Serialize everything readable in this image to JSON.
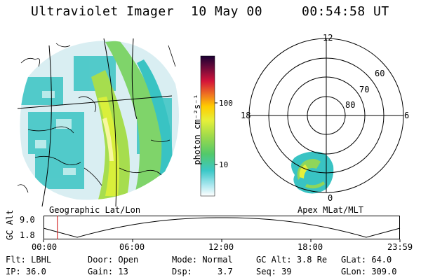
{
  "header": {
    "instrument": "Ultraviolet Imager",
    "date": "10 May 00",
    "time": "00:54:58 UT"
  },
  "left_panel": {
    "caption": "Geographic Lat/Lon"
  },
  "colorbar": {
    "label": "photon cm⁻²s⁻¹",
    "ticks": [
      "100",
      "10"
    ]
  },
  "right_panel": {
    "caption": "Apex MLat/MLT",
    "mlt_labels": {
      "top": "12",
      "left": "18",
      "right": "6",
      "bottom": "0"
    },
    "lat_labels": [
      "60",
      "70",
      "80"
    ]
  },
  "altitude_plot": {
    "ylabel": "GC Alt",
    "ymax": "9.0",
    "ymin": "1.8",
    "xticks": [
      "00:00",
      "06:00",
      "12:00",
      "18:00",
      "23:59"
    ],
    "current_time_fraction": 0.039
  },
  "info": {
    "row1": [
      {
        "key": "Flt:",
        "val": "LBHL"
      },
      {
        "key": "Door:",
        "val": "Open"
      },
      {
        "key": "Mode:",
        "val": "Normal"
      },
      {
        "key": "GC Alt:",
        "val": "3.8 Re"
      },
      {
        "key": "GLat:",
        "val": "64.0"
      }
    ],
    "row2": [
      {
        "key": "IP:",
        "val": "36.0"
      },
      {
        "key": "Gain:",
        "val": "13"
      },
      {
        "key": "Dsp:",
        "val": "3.7"
      },
      {
        "key": "Seq:",
        "val": "39"
      },
      {
        "key": "GLon:",
        "val": "309.0"
      }
    ]
  },
  "colors": {
    "bg": "#ffffff",
    "fg": "#000000",
    "time_marker": "#cc0000"
  }
}
